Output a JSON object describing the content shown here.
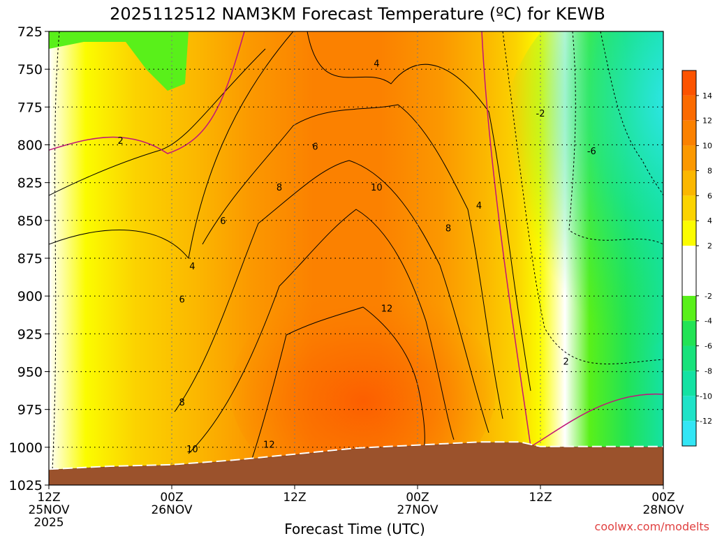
{
  "chart_data": {
    "type": "contour",
    "title": "2025112512 NAM3KM Forecast Temperature (ºC) for KEWB",
    "xlabel": "Forecast Time (UTC)",
    "ylabel": "",
    "credit": "coolwx.com/modelts",
    "y_axis": {
      "units": "hPa",
      "range": [
        725,
        1025
      ],
      "inverted": true,
      "ticks": [
        725,
        750,
        775,
        800,
        825,
        850,
        875,
        900,
        925,
        950,
        975,
        1000,
        1025
      ]
    },
    "x_axis": {
      "units": "hours from 2025112512",
      "range": [
        0,
        60
      ],
      "ticks": [
        {
          "hour": 0,
          "lines": [
            "12Z",
            "25NOV",
            "2025"
          ]
        },
        {
          "hour": 12,
          "lines": [
            "00Z",
            "26NOV"
          ]
        },
        {
          "hour": 24,
          "lines": [
            "12Z"
          ]
        },
        {
          "hour": 36,
          "lines": [
            "00Z",
            "27NOV"
          ]
        },
        {
          "hour": 48,
          "lines": [
            "12Z"
          ]
        },
        {
          "hour": 60,
          "lines": [
            "00Z",
            "28NOV"
          ]
        }
      ]
    },
    "colorbar": {
      "range": [
        -14,
        16
      ],
      "bands": [
        {
          "from": -14,
          "to": -12,
          "color": "#33e6f5"
        },
        {
          "from": -12,
          "to": -10,
          "color": "#1fe3c8"
        },
        {
          "from": -10,
          "to": -8,
          "color": "#14e2a3"
        },
        {
          "from": -8,
          "to": -6,
          "color": "#18e27b"
        },
        {
          "from": -6,
          "to": -4,
          "color": "#22e355"
        },
        {
          "from": -4,
          "to": -2,
          "color": "#59f01a"
        },
        {
          "from": -2,
          "to": 2,
          "color": "#ffffff"
        },
        {
          "from": 2,
          "to": 4,
          "color": "#fbfc00"
        },
        {
          "from": 4,
          "to": 6,
          "color": "#fbd300"
        },
        {
          "from": 6,
          "to": 8,
          "color": "#fbb700"
        },
        {
          "from": 8,
          "to": 10,
          "color": "#fb9800"
        },
        {
          "from": 10,
          "to": 12,
          "color": "#fb8100"
        },
        {
          "from": 12,
          "to": 14,
          "color": "#fb6a00"
        },
        {
          "from": 14,
          "to": 16,
          "color": "#fc5300"
        }
      ],
      "tick_labels": [
        {
          "value": -12,
          "label": "-12"
        },
        {
          "value": -10,
          "label": "-10"
        },
        {
          "value": -8,
          "label": "-8"
        },
        {
          "value": -6,
          "label": "-6"
        },
        {
          "value": -4,
          "label": "-4"
        },
        {
          "value": -2,
          "label": "-2"
        },
        {
          "value": 2,
          "label": "2"
        },
        {
          "value": 4,
          "label": "4"
        },
        {
          "value": 6,
          "label": "6"
        },
        {
          "value": 8,
          "label": "8"
        },
        {
          "value": 10,
          "label": "10"
        },
        {
          "value": 12,
          "label": "12"
        },
        {
          "value": 14,
          "label": "14"
        }
      ]
    },
    "contour_labels": [
      {
        "label": "2",
        "hour": 7.0,
        "hpa": 797
      },
      {
        "label": "4",
        "hour": 32.0,
        "hpa": 746
      },
      {
        "label": "6",
        "hour": 26.0,
        "hpa": 801
      },
      {
        "label": "4",
        "hour": 14.0,
        "hpa": 880
      },
      {
        "label": "6",
        "hour": 17.0,
        "hpa": 850
      },
      {
        "label": "8",
        "hour": 22.5,
        "hpa": 828
      },
      {
        "label": "10",
        "hour": 32.0,
        "hpa": 828
      },
      {
        "label": "6",
        "hour": 13.0,
        "hpa": 902
      },
      {
        "label": "4",
        "hour": 42.0,
        "hpa": 840
      },
      {
        "label": "8",
        "hour": 39.0,
        "hpa": 855
      },
      {
        "label": "12",
        "hour": 33.0,
        "hpa": 908
      },
      {
        "label": "8",
        "hour": 13.0,
        "hpa": 970
      },
      {
        "label": "10",
        "hour": 14.0,
        "hpa": 1001
      },
      {
        "label": "12",
        "hour": 21.5,
        "hpa": 998
      },
      {
        "label": "-2",
        "hour": 48.0,
        "hpa": 779
      },
      {
        "label": "-6",
        "hour": 53.0,
        "hpa": 804
      },
      {
        "label": "2",
        "hour": 50.5,
        "hpa": 943
      }
    ],
    "thermal_structure": [
      {
        "band": "12 to 14",
        "hours": [
          22,
          40
        ],
        "hpa": [
          890,
          1005
        ]
      },
      {
        "band": "-2 to -4",
        "hours": [
          45,
          60
        ],
        "hpa": [
          725,
          930
        ]
      },
      {
        "band": "below -8",
        "hours": [
          55,
          60
        ],
        "hpa": [
          725,
          850
        ]
      }
    ],
    "surface_pressure_hpa": [
      {
        "hour": 0,
        "hpa": 1015
      },
      {
        "hour": 6,
        "hpa": 1013
      },
      {
        "hour": 12,
        "hpa": 1012
      },
      {
        "hour": 18,
        "hpa": 1009
      },
      {
        "hour": 24,
        "hpa": 1005
      },
      {
        "hour": 30,
        "hpa": 1001
      },
      {
        "hour": 36,
        "hpa": 999
      },
      {
        "hour": 42,
        "hpa": 997
      },
      {
        "hour": 46,
        "hpa": 997
      },
      {
        "hour": 48,
        "hpa": 1000
      },
      {
        "hour": 54,
        "hpa": 1000
      },
      {
        "hour": 60,
        "hpa": 1000
      }
    ]
  }
}
